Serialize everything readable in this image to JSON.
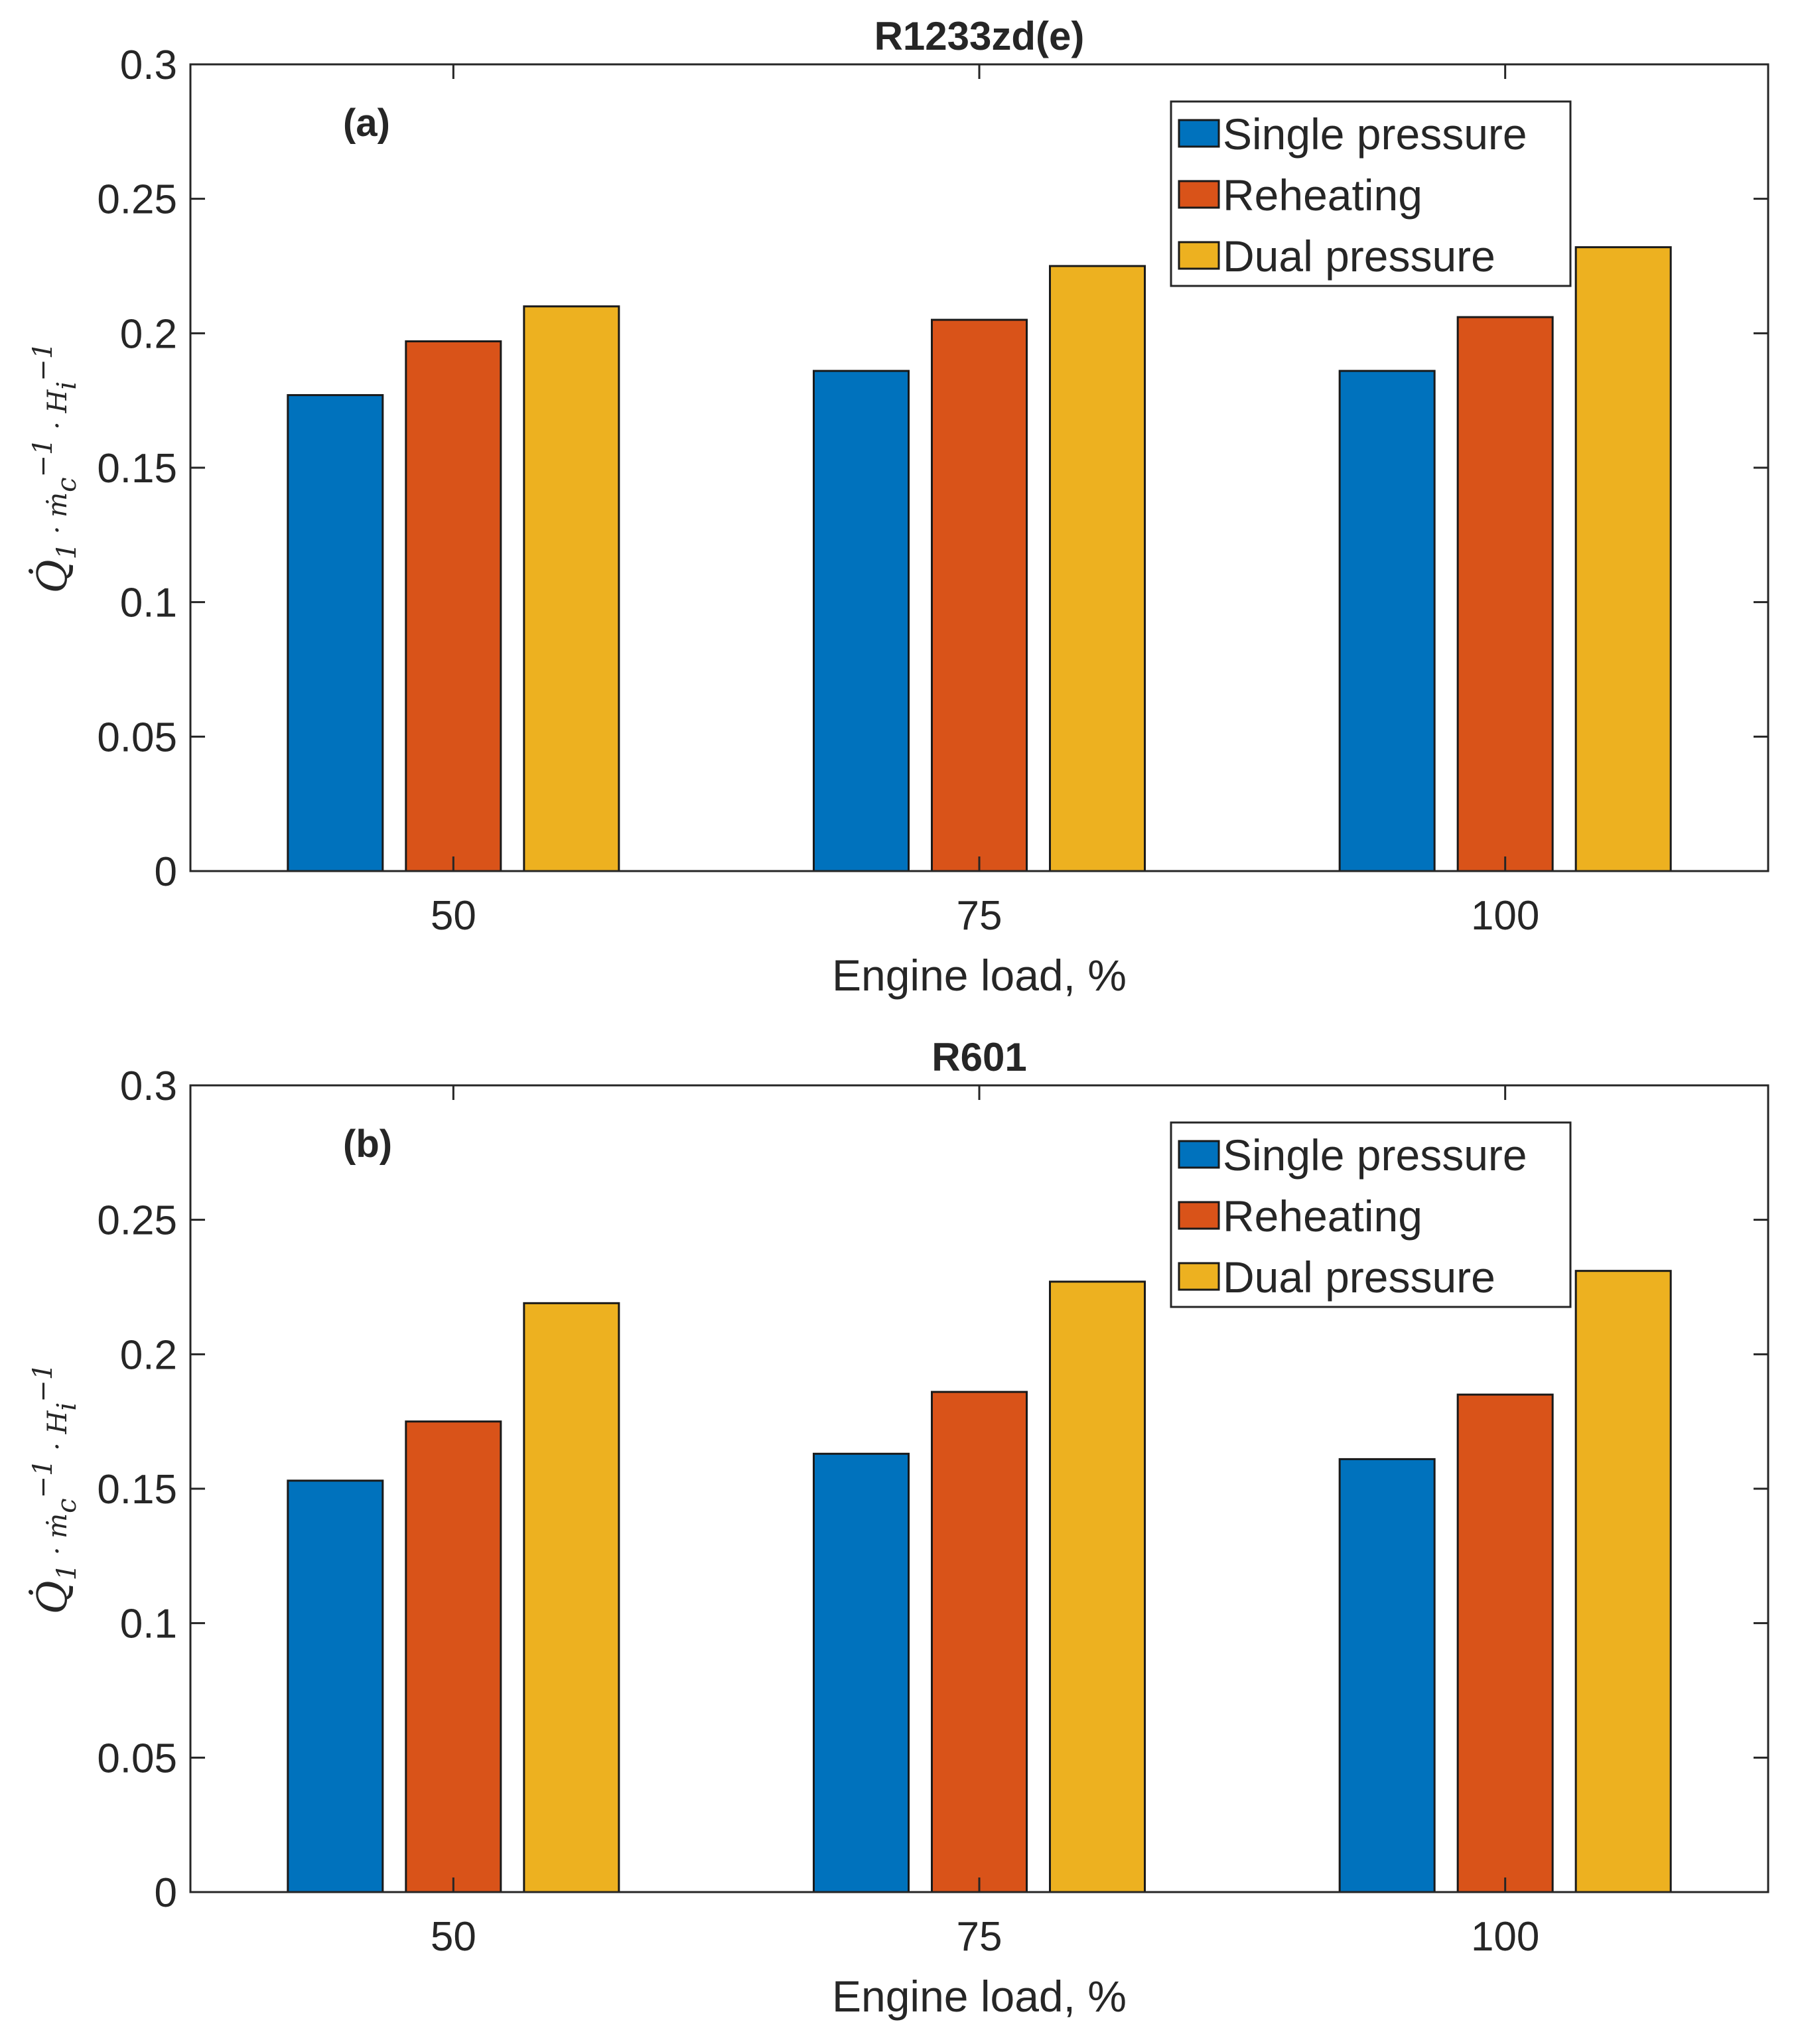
{
  "chart_data": [
    {
      "type": "bar",
      "title": "R1233zd(e)",
      "panel_label": "(a)",
      "categories": [
        "50",
        "75",
        "100"
      ],
      "xlabel": "Engine load, %",
      "ylabel": "Q̇1 · ṁc−1 · Hi−1",
      "ylim": [
        0,
        0.3
      ],
      "yticks": [
        "0",
        "0.05",
        "0.1",
        "0.15",
        "0.2",
        "0.25",
        "0.3"
      ],
      "legend_position": "top-right",
      "series": [
        {
          "name": "Single pressure",
          "color": "#0072BD",
          "values": [
            0.177,
            0.186,
            0.186
          ]
        },
        {
          "name": "Reheating",
          "color": "#D95319",
          "values": [
            0.197,
            0.205,
            0.206
          ]
        },
        {
          "name": "Dual pressure",
          "color": "#EDB120",
          "values": [
            0.21,
            0.225,
            0.232
          ]
        }
      ]
    },
    {
      "type": "bar",
      "title": "R601",
      "panel_label": "(b)",
      "categories": [
        "50",
        "75",
        "100"
      ],
      "xlabel": "Engine load, %",
      "ylabel": "Q̇1 · ṁc−1 · Hi−1",
      "ylim": [
        0,
        0.3
      ],
      "yticks": [
        "0",
        "0.05",
        "0.1",
        "0.15",
        "0.2",
        "0.25",
        "0.3"
      ],
      "legend_position": "top-right",
      "series": [
        {
          "name": "Single pressure",
          "color": "#0072BD",
          "values": [
            0.153,
            0.163,
            0.161
          ]
        },
        {
          "name": "Reheating",
          "color": "#D95319",
          "values": [
            0.175,
            0.186,
            0.185
          ]
        },
        {
          "name": "Dual pressure",
          "color": "#EDB120",
          "values": [
            0.219,
            0.227,
            0.231
          ]
        }
      ]
    }
  ]
}
